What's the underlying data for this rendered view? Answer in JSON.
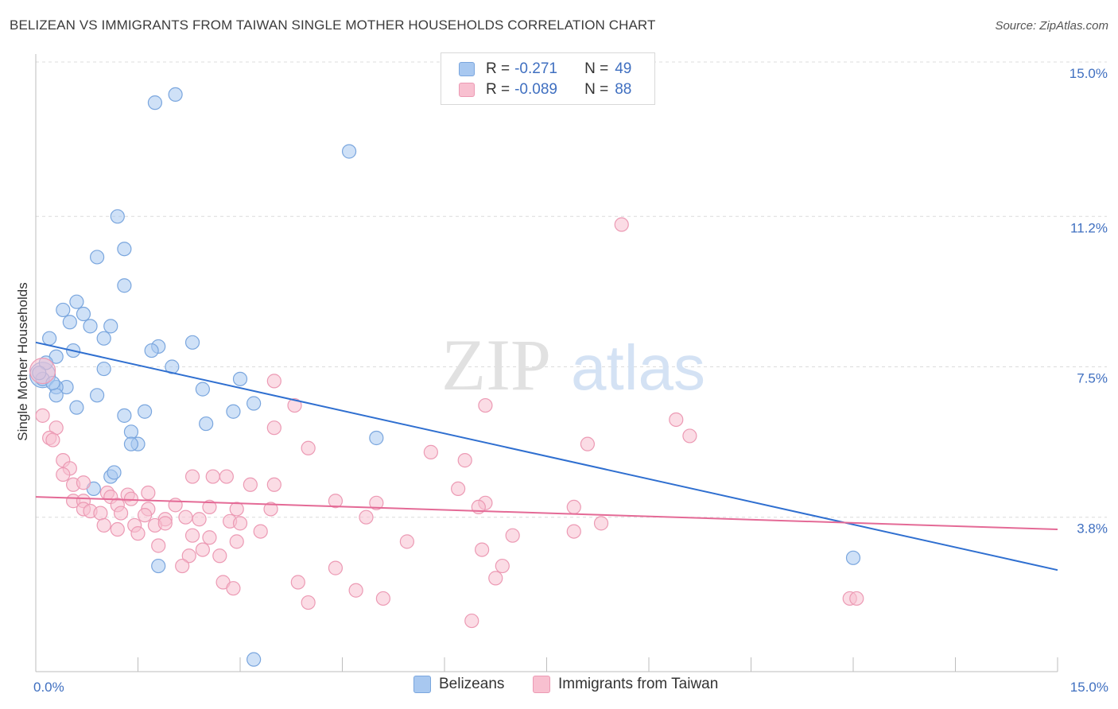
{
  "header": {
    "title": "BELIZEAN VS IMMIGRANTS FROM TAIWAN SINGLE MOTHER HOUSEHOLDS CORRELATION CHART",
    "source": "Source: ZipAtlas.com"
  },
  "watermark": {
    "zip": "ZIP",
    "atlas": "atlas"
  },
  "legend": {
    "rows": [
      {
        "r_label": "R =",
        "r_value": "-0.271",
        "n_label": "N =",
        "n_value": "49",
        "color": "#a8c8f0",
        "stroke": "#7aa6de"
      },
      {
        "r_label": "R =",
        "r_value": "-0.089",
        "n_label": "N =",
        "n_value": "88",
        "color": "#f8c0d0",
        "stroke": "#ec9ab4"
      }
    ]
  },
  "bottom_legend": {
    "items": [
      {
        "label": "Belizeans",
        "color": "#a8c8f0",
        "stroke": "#7aa6de"
      },
      {
        "label": "Immigrants from Taiwan",
        "color": "#f8c0d0",
        "stroke": "#ec9ab4"
      }
    ]
  },
  "chart_data": {
    "type": "scatter",
    "title": "BELIZEAN VS IMMIGRANTS FROM TAIWAN SINGLE MOTHER HOUSEHOLDS CORRELATION CHART",
    "ylabel": "Single Mother Households",
    "xlabel": "",
    "xlim": [
      0,
      15
    ],
    "ylim": [
      0,
      15
    ],
    "x_tick_labels": [
      {
        "value": 0,
        "label": "0.0%"
      },
      {
        "value": 15,
        "label": "15.0%"
      }
    ],
    "y_tick_labels": [
      {
        "value": 3.8,
        "label": "3.8%"
      },
      {
        "value": 7.5,
        "label": "7.5%"
      },
      {
        "value": 11.2,
        "label": "11.2%"
      },
      {
        "value": 15.0,
        "label": "15.0%"
      }
    ],
    "grid": true,
    "legend_position": "top-center",
    "series": [
      {
        "name": "Belizeans",
        "color": "#a8c8f0",
        "stroke": "#7aa6de",
        "trend": {
          "x": [
            0,
            15
          ],
          "y": [
            8.1,
            2.5
          ],
          "color": "#2f6fd0"
        },
        "points": [
          [
            1.75,
            14.0
          ],
          [
            2.05,
            14.2
          ],
          [
            4.6,
            12.8
          ],
          [
            1.2,
            11.2
          ],
          [
            1.3,
            10.4
          ],
          [
            0.9,
            10.2
          ],
          [
            1.3,
            9.5
          ],
          [
            0.6,
            9.1
          ],
          [
            0.4,
            8.9
          ],
          [
            0.7,
            8.8
          ],
          [
            0.5,
            8.6
          ],
          [
            0.8,
            8.5
          ],
          [
            1.1,
            8.5
          ],
          [
            0.2,
            8.2
          ],
          [
            1.0,
            8.2
          ],
          [
            1.8,
            8.0
          ],
          [
            2.3,
            8.1
          ],
          [
            1.7,
            7.9
          ],
          [
            0.55,
            7.9
          ],
          [
            0.3,
            7.75
          ],
          [
            2.0,
            7.5
          ],
          [
            1.0,
            7.45
          ],
          [
            0.1,
            7.3
          ],
          [
            0.1,
            7.2
          ],
          [
            0.45,
            7.0
          ],
          [
            3.0,
            7.2
          ],
          [
            0.3,
            7.0
          ],
          [
            2.45,
            6.95
          ],
          [
            0.9,
            6.8
          ],
          [
            0.3,
            6.8
          ],
          [
            3.2,
            6.6
          ],
          [
            0.6,
            6.5
          ],
          [
            1.6,
            6.4
          ],
          [
            2.9,
            6.4
          ],
          [
            1.3,
            6.3
          ],
          [
            2.5,
            6.1
          ],
          [
            1.4,
            5.9
          ],
          [
            5.0,
            5.75
          ],
          [
            1.5,
            5.6
          ],
          [
            1.4,
            5.6
          ],
          [
            1.1,
            4.8
          ],
          [
            0.85,
            4.5
          ],
          [
            1.8,
            2.6
          ],
          [
            12.0,
            2.8
          ],
          [
            3.2,
            0.3
          ],
          [
            0.15,
            7.6
          ],
          [
            0.05,
            7.35
          ],
          [
            0.25,
            7.1
          ],
          [
            1.15,
            4.9
          ]
        ]
      },
      {
        "name": "Immigrants from Taiwan",
        "color": "#f8c0d0",
        "stroke": "#ec9ab4",
        "trend": {
          "x": [
            0,
            15
          ],
          "y": [
            4.3,
            3.5
          ],
          "color": "#e46a96"
        },
        "points": [
          [
            8.6,
            11.0
          ],
          [
            0.1,
            7.4
          ],
          [
            3.5,
            7.15
          ],
          [
            6.6,
            6.55
          ],
          [
            0.1,
            6.3
          ],
          [
            9.4,
            6.2
          ],
          [
            3.8,
            6.55
          ],
          [
            0.3,
            6.0
          ],
          [
            3.5,
            6.0
          ],
          [
            0.2,
            5.75
          ],
          [
            0.25,
            5.7
          ],
          [
            9.6,
            5.8
          ],
          [
            8.1,
            5.6
          ],
          [
            4.0,
            5.5
          ],
          [
            5.8,
            5.4
          ],
          [
            6.3,
            5.2
          ],
          [
            0.4,
            5.2
          ],
          [
            0.5,
            5.0
          ],
          [
            0.4,
            4.85
          ],
          [
            2.3,
            4.8
          ],
          [
            2.6,
            4.8
          ],
          [
            2.8,
            4.8
          ],
          [
            0.55,
            4.6
          ],
          [
            0.7,
            4.65
          ],
          [
            3.15,
            4.6
          ],
          [
            3.5,
            4.6
          ],
          [
            1.05,
            4.4
          ],
          [
            1.35,
            4.35
          ],
          [
            1.65,
            4.4
          ],
          [
            1.4,
            4.25
          ],
          [
            1.1,
            4.3
          ],
          [
            0.55,
            4.2
          ],
          [
            0.7,
            4.2
          ],
          [
            4.4,
            4.2
          ],
          [
            5.0,
            4.15
          ],
          [
            6.2,
            4.5
          ],
          [
            6.6,
            4.15
          ],
          [
            6.5,
            4.05
          ],
          [
            1.2,
            4.1
          ],
          [
            2.05,
            4.1
          ],
          [
            0.7,
            4.0
          ],
          [
            0.8,
            3.95
          ],
          [
            1.65,
            4.0
          ],
          [
            2.55,
            4.05
          ],
          [
            2.95,
            4.0
          ],
          [
            3.45,
            4.0
          ],
          [
            7.9,
            4.05
          ],
          [
            0.95,
            3.9
          ],
          [
            1.25,
            3.9
          ],
          [
            1.6,
            3.85
          ],
          [
            1.9,
            3.75
          ],
          [
            2.2,
            3.8
          ],
          [
            2.4,
            3.75
          ],
          [
            2.85,
            3.7
          ],
          [
            3.0,
            3.65
          ],
          [
            4.85,
            3.8
          ],
          [
            1.0,
            3.6
          ],
          [
            1.2,
            3.5
          ],
          [
            1.45,
            3.6
          ],
          [
            1.75,
            3.6
          ],
          [
            1.9,
            3.65
          ],
          [
            3.3,
            3.45
          ],
          [
            8.3,
            3.65
          ],
          [
            1.5,
            3.4
          ],
          [
            2.3,
            3.35
          ],
          [
            2.55,
            3.3
          ],
          [
            2.95,
            3.2
          ],
          [
            5.45,
            3.2
          ],
          [
            7.0,
            3.35
          ],
          [
            7.9,
            3.45
          ],
          [
            1.8,
            3.1
          ],
          [
            2.45,
            3.0
          ],
          [
            2.7,
            2.85
          ],
          [
            6.55,
            3.0
          ],
          [
            2.25,
            2.85
          ],
          [
            2.15,
            2.6
          ],
          [
            4.4,
            2.55
          ],
          [
            6.85,
            2.6
          ],
          [
            2.75,
            2.2
          ],
          [
            3.85,
            2.2
          ],
          [
            2.9,
            2.05
          ],
          [
            6.75,
            2.3
          ],
          [
            4.7,
            2.0
          ],
          [
            5.1,
            1.8
          ],
          [
            4.0,
            1.7
          ],
          [
            11.95,
            1.8
          ],
          [
            12.05,
            1.8
          ],
          [
            6.4,
            1.25
          ]
        ]
      }
    ]
  }
}
